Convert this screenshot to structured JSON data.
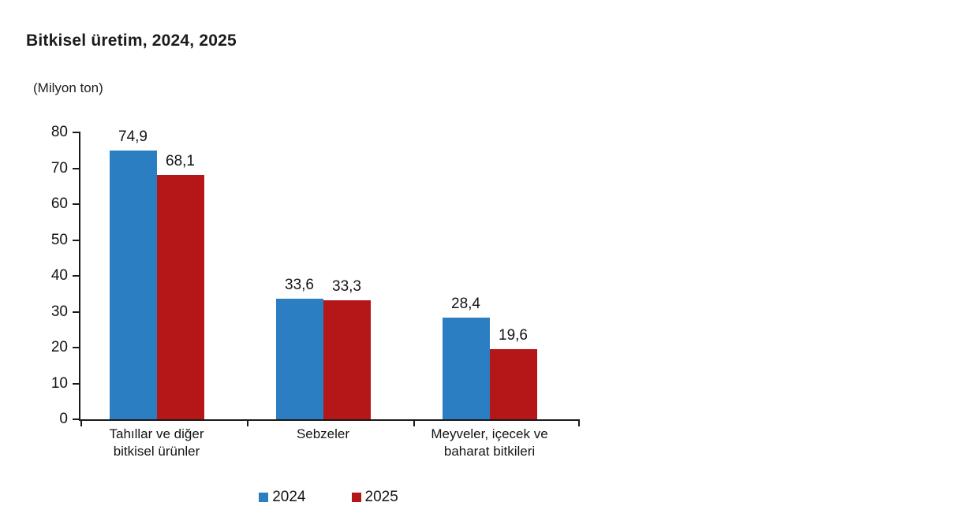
{
  "chart_data": {
    "type": "bar",
    "title": "Bitkisel üretim, 2024, 2025",
    "unit_label": "(Milyon ton)",
    "categories": [
      "Tahıllar ve diğer\nbitkisel ürünler",
      "Sebzeler",
      "Meyveler, içecek ve\nbaharat  bitkileri"
    ],
    "series": [
      {
        "name": "2024",
        "color": "#2B7EC1",
        "values": [
          74.9,
          33.6,
          28.4
        ],
        "labels": [
          "74,9",
          "33,6",
          "28,4"
        ]
      },
      {
        "name": "2025",
        "color": "#B51618",
        "values": [
          68.1,
          33.3,
          19.6
        ],
        "labels": [
          "68,1",
          "33,3",
          "19,6"
        ]
      }
    ],
    "ylim": [
      0,
      80
    ],
    "ytick_step": 10,
    "ytick_labels": [
      "0",
      "10",
      "20",
      "30",
      "40",
      "50",
      "60",
      "70",
      "80"
    ],
    "xlabel": "",
    "ylabel": "",
    "grid": false,
    "legend_position": "bottom",
    "axis_color": "#1A1A1A",
    "text_color": "#141414"
  }
}
